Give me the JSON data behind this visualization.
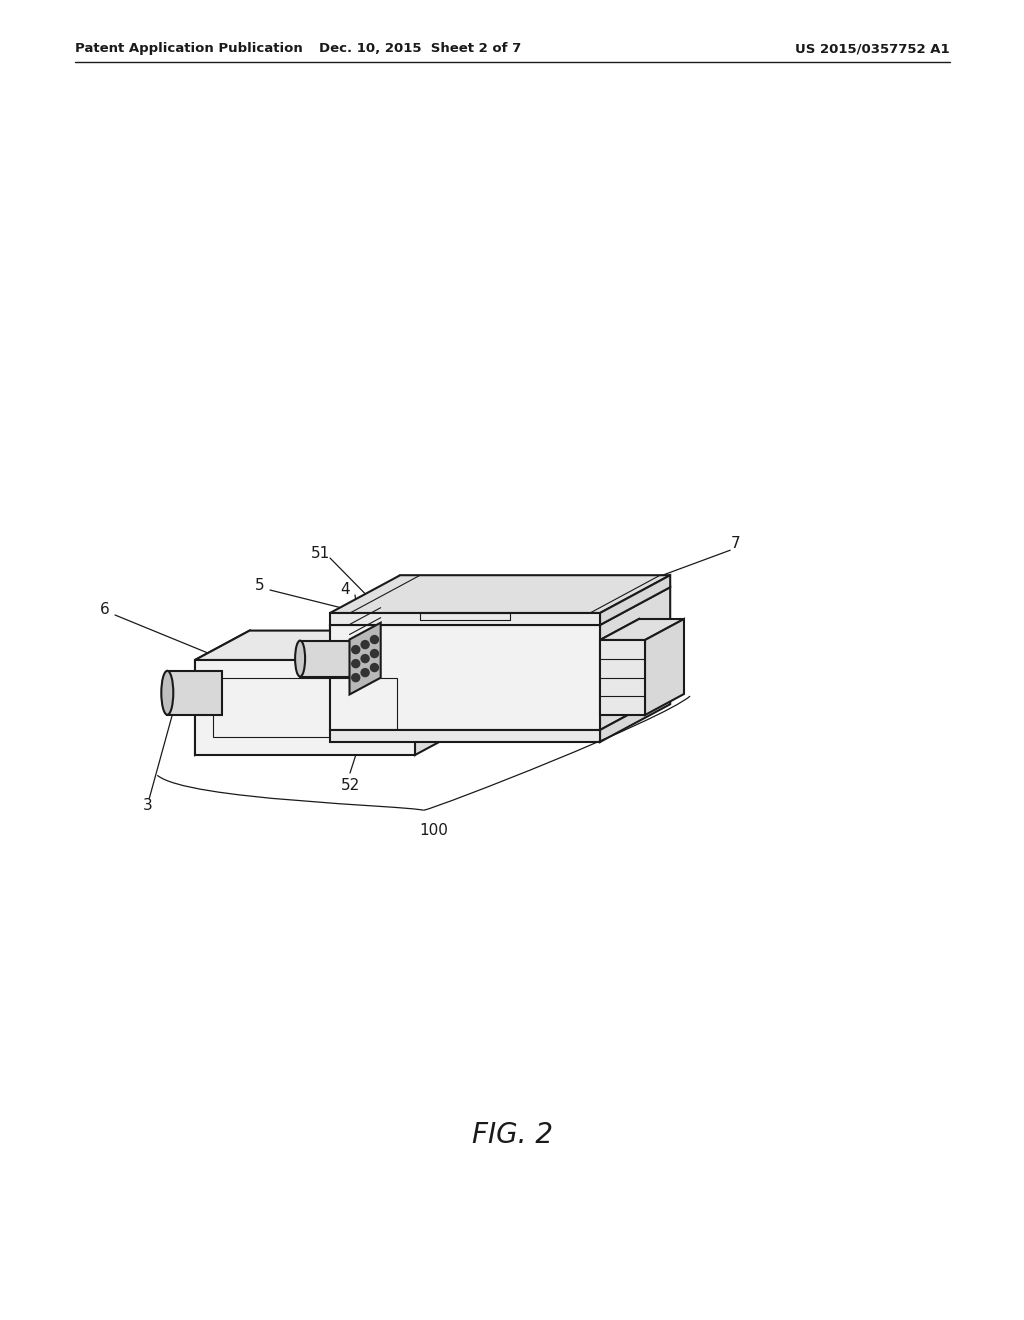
{
  "bg_color": "#ffffff",
  "line_color": "#1a1a1a",
  "header_left": "Patent Application Publication",
  "header_mid": "Dec. 10, 2015  Sheet 2 of 7",
  "header_right": "US 2015/0357752 A1",
  "figure_label": "FIG. 2",
  "lw_main": 1.5,
  "lw_detail": 0.8,
  "label_fontsize": 11
}
